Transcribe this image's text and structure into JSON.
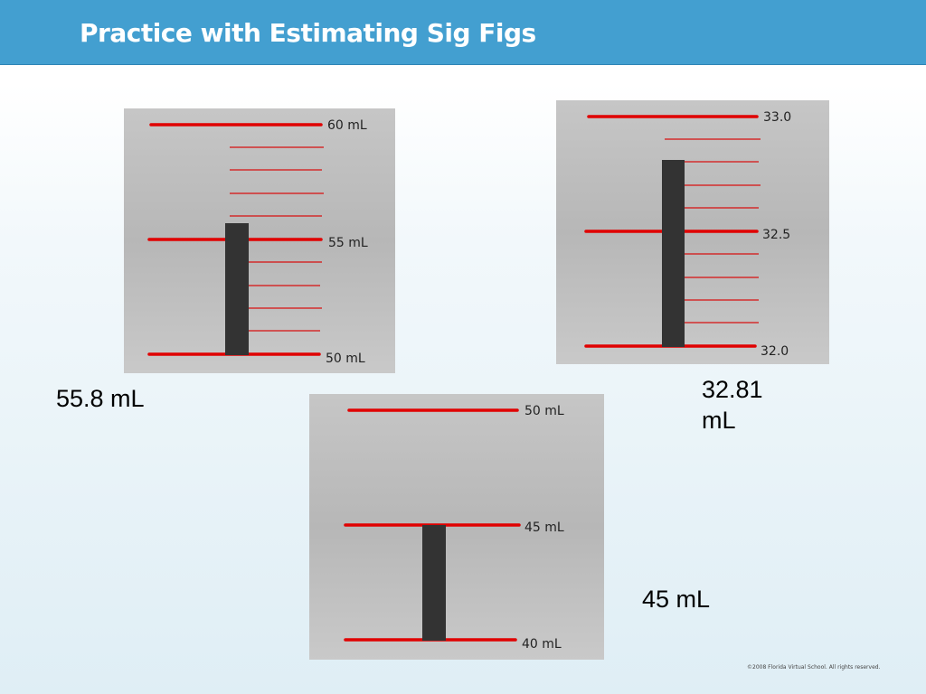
{
  "slide": {
    "title": "Practice with Estimating Sig Figs",
    "copyright": "©2008 Florida Virtual School. All rights reserved."
  },
  "gauges": [
    {
      "labels": [
        "60 mL",
        "55 mL",
        "50 mL"
      ],
      "answer": "55.8 mL"
    },
    {
      "labels": [
        "33.0",
        "32.5",
        "32.0"
      ],
      "answer": "32.81 mL"
    },
    {
      "labels": [
        "50 mL",
        "45 mL",
        "40 mL"
      ],
      "answer": "45 mL"
    }
  ],
  "colors": {
    "title_bar": "#439fd0",
    "major_line": "#e00000",
    "minor_line": "#d81010",
    "liquid_bar": "#333333"
  }
}
